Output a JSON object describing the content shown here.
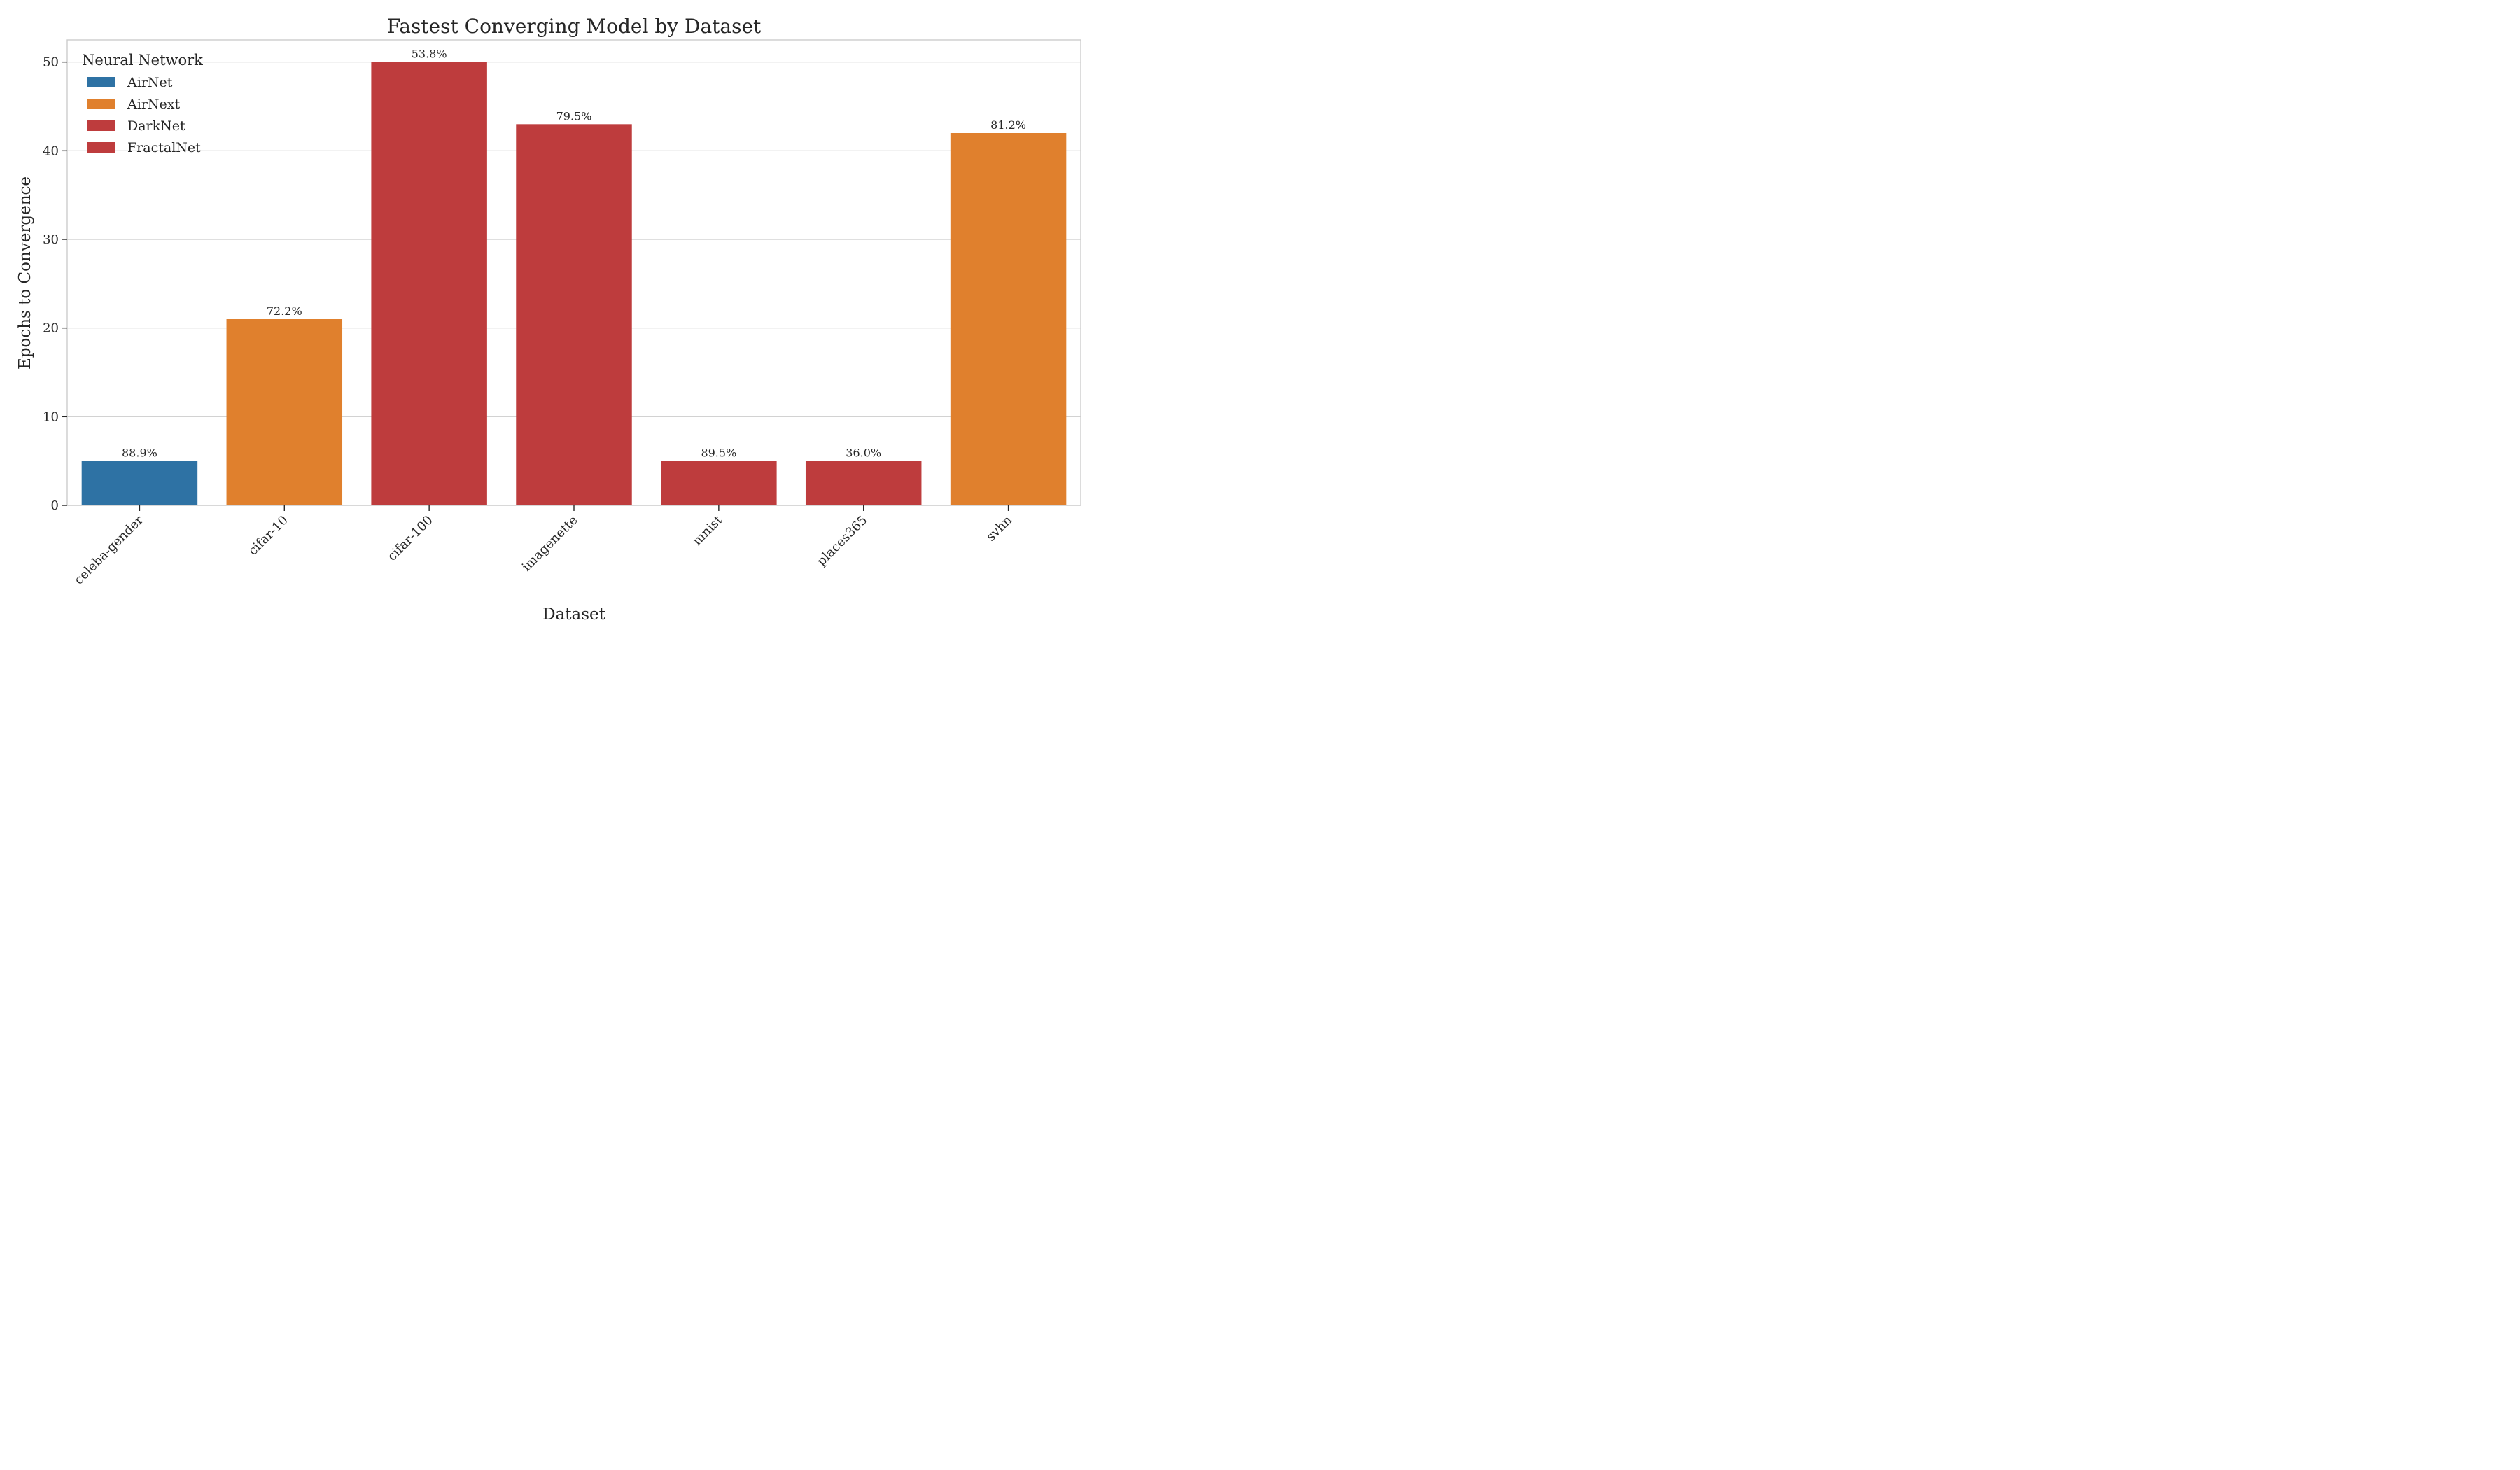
{
  "chart_data": {
    "type": "bar",
    "title": "Fastest Converging Model by Dataset",
    "xlabel": "Dataset",
    "ylabel": "Epochs to Convergence",
    "ylim": [
      0,
      52.5
    ],
    "yticks": [
      0,
      10,
      20,
      30,
      40,
      50
    ],
    "grid": true,
    "legend": {
      "title": "Neural Network",
      "placement": "top-left",
      "entries": [
        {
          "name": "AirNet",
          "color": "#2e72a4"
        },
        {
          "name": "AirNext",
          "color": "#e0802d"
        },
        {
          "name": "DarkNet",
          "color": "#be3c3d"
        },
        {
          "name": "FractalNet",
          "color": "#be3c3d"
        }
      ]
    },
    "categories": [
      "celeba-gender",
      "cifar-10",
      "cifar-100",
      "imagenette",
      "mnist",
      "places365",
      "svhn"
    ],
    "values": [
      5,
      21,
      50,
      43,
      5,
      5,
      42
    ],
    "models": [
      "AirNet",
      "AirNext",
      "DarkNet",
      "DarkNet",
      "DarkNet",
      "FractalNet",
      "AirNext"
    ],
    "bar_labels": [
      "88.9%",
      "72.2%",
      "53.8%",
      "79.5%",
      "89.5%",
      "36.0%",
      "81.2%"
    ]
  }
}
